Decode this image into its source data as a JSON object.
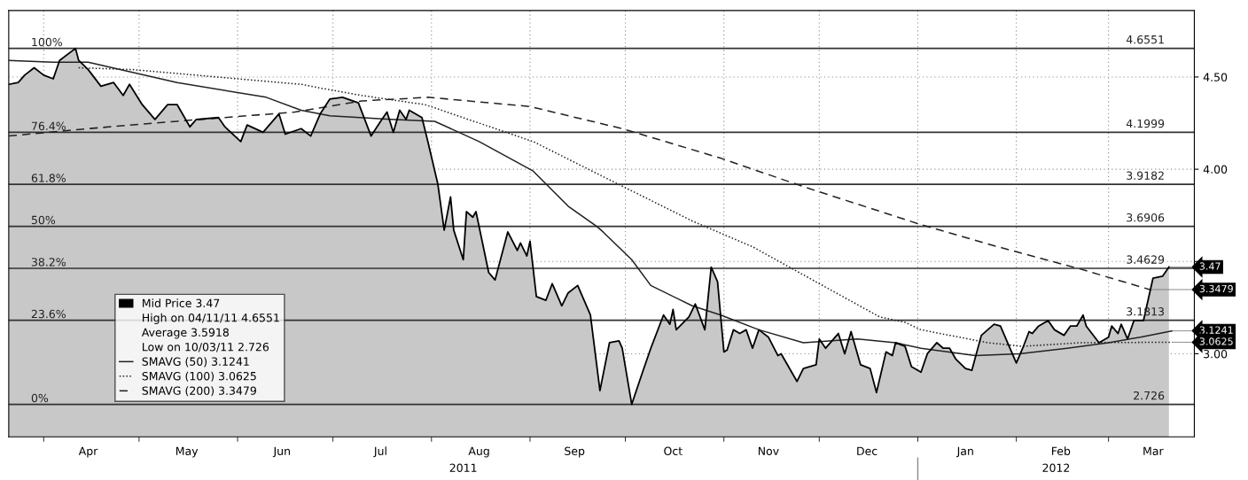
{
  "chart_data": {
    "type": "line",
    "x": [
      "2011-03-21",
      "2011-03-24",
      "2011-03-26",
      "2011-03-29",
      "2011-04-01",
      "2011-04-04",
      "2011-04-06",
      "2011-04-11",
      "2011-04-12",
      "2011-04-15",
      "2011-04-19",
      "2011-04-23",
      "2011-04-26",
      "2011-04-28",
      "2011-05-02",
      "2011-05-06",
      "2011-05-10",
      "2011-05-13",
      "2011-05-17",
      "2011-05-19",
      "2011-05-26",
      "2011-05-28",
      "2011-06-02",
      "2011-06-04",
      "2011-06-09",
      "2011-06-14",
      "2011-06-16",
      "2011-06-21",
      "2011-06-24",
      "2011-06-27",
      "2011-06-30",
      "2011-07-04",
      "2011-07-09",
      "2011-07-13",
      "2011-07-16",
      "2011-07-18",
      "2011-07-20",
      "2011-07-22",
      "2011-07-24",
      "2011-07-25",
      "2011-07-29",
      "2011-07-31",
      "2011-08-03",
      "2011-08-05",
      "2011-08-07",
      "2011-08-08",
      "2011-08-11",
      "2011-08-12",
      "2011-08-14",
      "2011-08-15",
      "2011-08-19",
      "2011-08-21",
      "2011-08-25",
      "2011-08-28",
      "2011-08-29",
      "2011-08-31",
      "2011-09-01",
      "2011-09-03",
      "2011-09-06",
      "2011-09-08",
      "2011-09-11",
      "2011-09-13",
      "2011-09-16",
      "2011-09-20",
      "2011-09-23",
      "2011-09-26",
      "2011-09-29",
      "2011-09-30",
      "2011-10-03",
      "2011-10-06",
      "2011-10-09",
      "2011-10-13",
      "2011-10-15",
      "2011-10-16",
      "2011-10-17",
      "2011-10-21",
      "2011-10-23",
      "2011-10-26",
      "2011-10-28",
      "2011-10-30",
      "2011-11-01",
      "2011-11-02",
      "2011-11-04",
      "2011-11-06",
      "2011-11-08",
      "2011-11-10",
      "2011-11-12",
      "2011-11-15",
      "2011-11-18",
      "2011-11-19",
      "2011-11-24",
      "2011-11-26",
      "2011-11-30",
      "2011-12-01",
      "2011-12-03",
      "2011-12-07",
      "2011-12-09",
      "2011-12-11",
      "2011-12-14",
      "2011-12-17",
      "2011-12-19",
      "2011-12-22",
      "2011-12-24",
      "2011-12-25",
      "2011-12-28",
      "2011-12-30",
      "2012-01-02",
      "2012-01-04",
      "2012-01-07",
      "2012-01-09",
      "2012-01-11",
      "2012-01-13",
      "2012-01-16",
      "2012-01-18",
      "2012-01-21",
      "2012-01-25",
      "2012-01-27",
      "2012-01-29",
      "2012-02-01",
      "2012-02-03",
      "2012-02-05",
      "2012-02-06",
      "2012-02-08",
      "2012-02-11",
      "2012-02-13",
      "2012-02-16",
      "2012-02-18",
      "2012-02-20",
      "2012-02-22",
      "2012-02-23",
      "2012-02-27",
      "2012-03-01",
      "2012-03-02",
      "2012-03-04",
      "2012-03-05",
      "2012-03-07",
      "2012-03-09",
      "2012-03-12",
      "2012-03-15",
      "2012-03-18",
      "2012-03-20"
    ],
    "series": [
      {
        "name": "Mid Price 3.47",
        "type": "area",
        "color": "#c8c8c8",
        "values": [
          4.46,
          4.47,
          4.51,
          4.55,
          4.51,
          4.49,
          4.59,
          4.655,
          4.59,
          4.54,
          4.45,
          4.47,
          4.4,
          4.46,
          4.35,
          4.27,
          4.35,
          4.35,
          4.23,
          4.27,
          4.28,
          4.23,
          4.15,
          4.24,
          4.2,
          4.3,
          4.19,
          4.22,
          4.18,
          4.3,
          4.38,
          4.39,
          4.36,
          4.18,
          4.26,
          4.31,
          4.2,
          4.32,
          4.27,
          4.32,
          4.28,
          4.14,
          3.92,
          3.67,
          3.85,
          3.67,
          3.51,
          3.77,
          3.74,
          3.77,
          3.44,
          3.4,
          3.66,
          3.56,
          3.6,
          3.53,
          3.61,
          3.31,
          3.29,
          3.38,
          3.26,
          3.33,
          3.37,
          3.21,
          2.8,
          3.06,
          3.07,
          3.03,
          2.726,
          2.88,
          3.03,
          3.21,
          3.16,
          3.24,
          3.13,
          3.2,
          3.27,
          3.13,
          3.47,
          3.39,
          3.01,
          3.02,
          3.13,
          3.11,
          3.13,
          3.03,
          3.13,
          3.09,
          2.99,
          3.0,
          2.85,
          2.92,
          2.94,
          3.08,
          3.03,
          3.11,
          3.0,
          3.12,
          2.94,
          2.92,
          2.79,
          3.01,
          2.99,
          3.06,
          3.04,
          2.93,
          2.9,
          3.0,
          3.06,
          3.03,
          3.03,
          2.97,
          2.92,
          2.91,
          3.1,
          3.16,
          3.15,
          3.07,
          2.95,
          3.03,
          3.12,
          3.11,
          3.15,
          3.18,
          3.13,
          3.1,
          3.15,
          3.15,
          3.21,
          3.15,
          3.06,
          3.09,
          3.15,
          3.11,
          3.16,
          3.08,
          3.18,
          3.18,
          3.41,
          3.42,
          3.47
        ]
      },
      {
        "name": "SMAVG (50) 3.1241",
        "color": "#222222",
        "line_style": "solid",
        "x": [
          "2011-03-21",
          "2011-04-04",
          "2011-04-15",
          "2011-05-13",
          "2011-06-10",
          "2011-06-21",
          "2011-06-30",
          "2011-07-19",
          "2011-08-02",
          "2011-08-16",
          "2011-09-02",
          "2011-09-13",
          "2011-09-22",
          "2011-09-24",
          "2011-10-03",
          "2011-10-09",
          "2011-10-22",
          "2011-10-31",
          "2011-11-12",
          "2011-11-26",
          "2011-12-13",
          "2011-12-25",
          "2012-01-02",
          "2012-01-19",
          "2012-02-02",
          "2012-02-17",
          "2012-03-01",
          "2012-03-11",
          "2012-03-21"
        ],
        "values": [
          4.59,
          4.58,
          4.58,
          4.47,
          4.39,
          4.32,
          4.29,
          4.27,
          4.26,
          4.15,
          3.99,
          3.8,
          3.69,
          3.66,
          3.51,
          3.37,
          3.26,
          3.21,
          3.13,
          3.06,
          3.08,
          3.06,
          3.03,
          2.99,
          3.0,
          3.03,
          3.06,
          3.09,
          3.1241
        ]
      },
      {
        "name": "SMAVG (100) 3.0625",
        "color": "#222222",
        "line_style": "dotted",
        "x": [
          "2011-04-12",
          "2011-04-29",
          "2011-06-21",
          "2011-06-27",
          "2011-07-10",
          "2011-07-30",
          "2011-09-02",
          "2011-09-24",
          "2011-10-22",
          "2011-11-10",
          "2011-12-01",
          "2011-12-20",
          "2011-12-28",
          "2012-01-02",
          "2012-01-23",
          "2012-02-03",
          "2012-02-21",
          "2012-03-21"
        ],
        "values": [
          4.55,
          4.54,
          4.46,
          4.44,
          4.4,
          4.35,
          4.15,
          3.96,
          3.72,
          3.58,
          3.38,
          3.2,
          3.17,
          3.13,
          3.06,
          3.04,
          3.06,
          3.0625
        ]
      },
      {
        "name": "SMAVG (200) 3.3479",
        "color": "#222222",
        "line_style": "dashed",
        "x": [
          "2011-03-21",
          "2011-04-15",
          "2011-05-13",
          "2011-06-19",
          "2011-07-10",
          "2011-07-31",
          "2011-09-01",
          "2011-09-30",
          "2011-10-31",
          "2011-11-27",
          "2012-01-02",
          "2012-01-24",
          "2012-02-21",
          "2012-03-14"
        ],
        "values": [
          4.18,
          4.22,
          4.26,
          4.31,
          4.37,
          4.39,
          4.34,
          4.22,
          4.06,
          3.9,
          3.7,
          3.59,
          3.46,
          3.3479
        ]
      }
    ],
    "xlim": [
      "2011-03-21",
      "2012-03-28"
    ],
    "xticks": [
      {
        "value": "2011-04-01",
        "label": null
      },
      {
        "value": "2011-04-15",
        "label": "Apr"
      },
      {
        "value": "2011-05-01",
        "label": null
      },
      {
        "value": "2011-05-16",
        "label": "May"
      },
      {
        "value": "2011-06-01",
        "label": null
      },
      {
        "value": "2011-06-15",
        "label": "Jun"
      },
      {
        "value": "2011-07-01",
        "label": null
      },
      {
        "value": "2011-07-16",
        "label": "Jul"
      },
      {
        "value": "2011-08-01",
        "label": null
      },
      {
        "value": "2011-08-16",
        "label": "Aug"
      },
      {
        "value": "2011-09-01",
        "label": null
      },
      {
        "value": "2011-09-15",
        "label": "Sep"
      },
      {
        "value": "2011-10-01",
        "label": null
      },
      {
        "value": "2011-10-16",
        "label": "Oct"
      },
      {
        "value": "2011-11-01",
        "label": null
      },
      {
        "value": "2011-11-15",
        "label": "Nov"
      },
      {
        "value": "2011-12-01",
        "label": null
      },
      {
        "value": "2011-12-16",
        "label": "Dec"
      },
      {
        "value": "2012-01-01",
        "label": null
      },
      {
        "value": "2012-01-16",
        "label": "Jan"
      },
      {
        "value": "2012-02-01",
        "label": null
      },
      {
        "value": "2012-02-15",
        "label": "Feb"
      },
      {
        "value": "2012-03-01",
        "label": null
      },
      {
        "value": "2012-03-15",
        "label": "Mar"
      }
    ],
    "ylim": [
      2.55,
      4.86
    ],
    "yticks": [
      {
        "value": 3,
        "label": "3.00"
      },
      {
        "value": 3.5,
        "label": null
      },
      {
        "value": 4,
        "label": "4.00"
      },
      {
        "value": 4.5,
        "label": "4.50"
      }
    ],
    "grid": true,
    "legend": "bottom left",
    "ref_lines": [
      {
        "axis": "y",
        "value": 4.6551,
        "label": "4.6551",
        "color": "#333333"
      },
      {
        "axis": "y",
        "value": 4.1999,
        "label": "4.1999",
        "color": "#333333"
      },
      {
        "axis": "y",
        "value": 3.9182,
        "label": "3.9182",
        "color": "#333333"
      },
      {
        "axis": "y",
        "value": 3.6906,
        "label": "3.6906",
        "color": "#333333"
      },
      {
        "axis": "y",
        "value": 3.4629,
        "label": "3.4629",
        "color": "#333333"
      },
      {
        "axis": "y",
        "value": 3.1813,
        "label": "3.1813",
        "color": "#333333"
      },
      {
        "axis": "y",
        "value": 2.726,
        "label": "2.726",
        "color": "#333333"
      }
    ],
    "annotations": [
      "High on 04/11/11 4.6551",
      "Average 3.5918",
      "Low on 10/03/11 2.726",
      "2011",
      "2012",
      {
        "text": "100%",
        "x": "2011-03-28",
        "y": 4.6551
      },
      {
        "text": "76.4%",
        "x": "2011-03-28",
        "y": 4.1999
      },
      {
        "text": "61.8%",
        "x": "2011-03-28",
        "y": 3.9182
      },
      {
        "text": "50%",
        "x": "2011-03-28",
        "y": 3.6906
      },
      {
        "text": "38.2%",
        "x": "2011-03-28",
        "y": 3.4629
      },
      {
        "text": "23.6%",
        "x": "2011-03-28",
        "y": 3.1813
      },
      {
        "text": "0%",
        "x": "2011-03-28",
        "y": 2.726
      },
      {
        "text": "3.47",
        "x": "2012-03-20",
        "y": 3.47
      },
      {
        "text": "3.3479",
        "x": "2012-03-14",
        "y": 3.3479
      },
      {
        "text": "3.1241",
        "x": "2012-03-21",
        "y": 3.1241
      },
      {
        "text": "3.0625",
        "x": "2012-03-21",
        "y": 3.0625
      }
    ]
  }
}
